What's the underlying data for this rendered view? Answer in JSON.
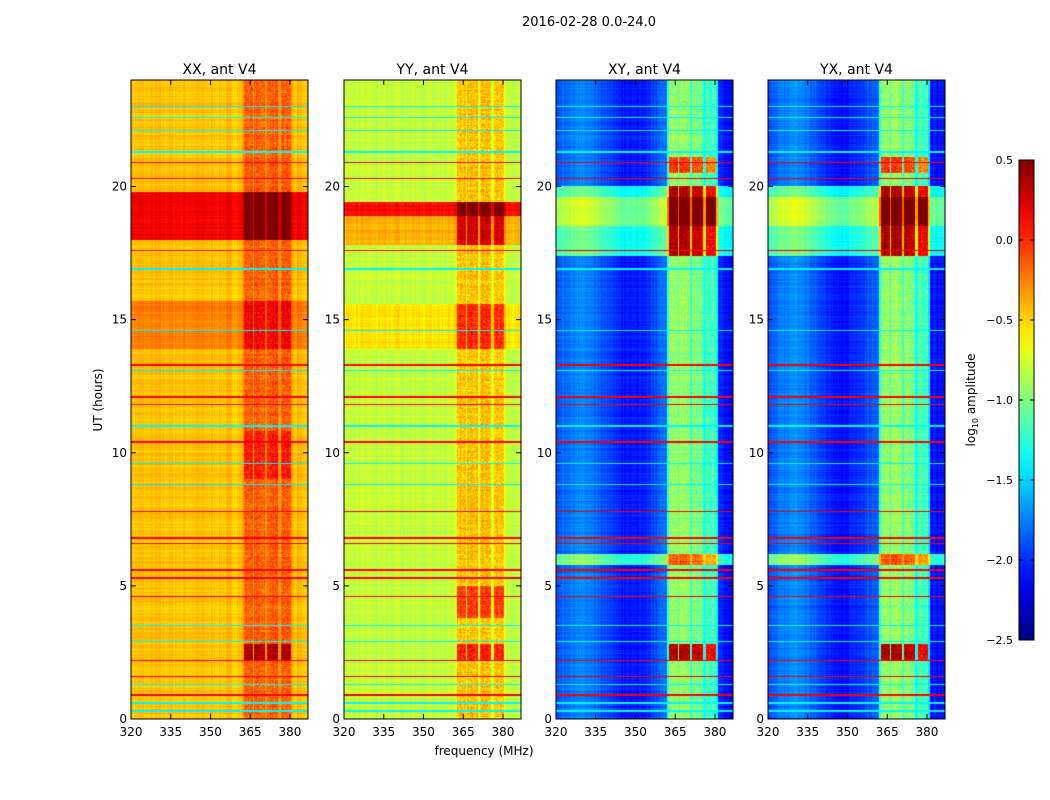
{
  "chart_data": {
    "type": "heatmap",
    "title": "2016-02-28 0.0-24.0",
    "xlabel": "frequency (MHz)",
    "ylabel": "UT (hours)",
    "xlim": [
      320,
      386.8
    ],
    "ylim": [
      0,
      24
    ],
    "xticks": [
      "320",
      "335",
      "350",
      "365",
      "380"
    ],
    "xtick_values": [
      320,
      335,
      350,
      365,
      380
    ],
    "yticks": [
      "0",
      "5",
      "10",
      "15",
      "20"
    ],
    "ytick_values": [
      0,
      5,
      10,
      15,
      20
    ],
    "colormap": "jet",
    "colorbar": {
      "label": "log10 amplitude",
      "label_main": "log",
      "label_sub": "10",
      "label_rest": " amplitude",
      "range": [
        -2.5,
        0.5
      ],
      "ticks": [
        "0.5",
        "0.0",
        "−0.5",
        "−1.0",
        "−1.5",
        "−2.0",
        "−2.5"
      ],
      "tick_values": [
        0.5,
        0.0,
        -0.5,
        -1.0,
        -1.5,
        -2.0,
        -2.5
      ]
    },
    "rfi_bands_mhz": [
      [
        362.5,
        366
      ],
      [
        366.5,
        370.5
      ],
      [
        371.5,
        375.5
      ],
      [
        376.5,
        380.5
      ]
    ],
    "red_lines_hours": [
      0.9,
      1.6,
      2.2,
      4.6,
      5.3,
      5.6,
      6.6,
      6.8,
      7.8,
      10.4,
      11.8,
      12.1,
      13.3,
      17.6,
      20.3,
      20.9
    ],
    "cyan_lines_hours": [
      0.3,
      0.6,
      1.3,
      2.9,
      3.5,
      8.8,
      9.6,
      11.0,
      13.1,
      14.6,
      16.9,
      21.3,
      22.1,
      22.6,
      23.0
    ],
    "panels": [
      {
        "title": "XX, ant V4",
        "base": -0.45,
        "rfi": 0.3,
        "events": [
          {
            "t": [
              18.0,
              19.8
            ],
            "d": 0.6,
            "rfi": 0.2
          },
          {
            "t": [
              13.9,
              15.7
            ],
            "d": 0.2,
            "rfi": 0.1
          },
          {
            "t": [
              2.2,
              2.8
            ],
            "d": 0,
            "rfi": 0.5
          },
          {
            "t": [
              9.0,
              10.8
            ],
            "d": 0,
            "rfi": 0.2
          }
        ]
      },
      {
        "title": "YY, ant V4",
        "base": -0.8,
        "rfi": 0.35,
        "events": [
          {
            "t": [
              18.9,
              19.4
            ],
            "d": 0.9,
            "rfi": 0.3
          },
          {
            "t": [
              17.8,
              18.9
            ],
            "d": 0.4,
            "rfi": 0.3
          },
          {
            "t": [
              13.9,
              15.6
            ],
            "d": 0.25,
            "rfi": 0.2
          },
          {
            "t": [
              3.8,
              5.0
            ],
            "d": 0,
            "rfi": 0.4
          },
          {
            "t": [
              2.2,
              2.8
            ],
            "d": 0,
            "rfi": 0.5
          }
        ]
      },
      {
        "title": "XY, ant V4",
        "base": -1.9,
        "rfi": 0.8,
        "events": [
          {
            "t": [
              17.4,
              20.0
            ],
            "d": 0.7,
            "rfi": 0.6
          },
          {
            "t": [
              18.5,
              19.6
            ],
            "d": 0.3,
            "rfi": 1.5
          },
          {
            "t": [
              2.2,
              2.8
            ],
            "d": 0,
            "rfi": 1.3
          },
          {
            "t": [
              5.8,
              6.2
            ],
            "d": 0.8,
            "rfi": 0
          },
          {
            "t": [
              20.5,
              21.1
            ],
            "d": 0,
            "rfi": 0.9
          }
        ]
      },
      {
        "title": "YX, ant V4",
        "base": -1.9,
        "rfi": 0.8,
        "events": [
          {
            "t": [
              17.4,
              20.0
            ],
            "d": 0.7,
            "rfi": 0.6
          },
          {
            "t": [
              18.5,
              19.6
            ],
            "d": 0.3,
            "rfi": 1.5
          },
          {
            "t": [
              2.2,
              2.8
            ],
            "d": 0,
            "rfi": 1.3
          },
          {
            "t": [
              5.8,
              6.2
            ],
            "d": 0.8,
            "rfi": 0
          },
          {
            "t": [
              20.5,
              21.1
            ],
            "d": 0,
            "rfi": 0.9
          }
        ]
      }
    ]
  }
}
